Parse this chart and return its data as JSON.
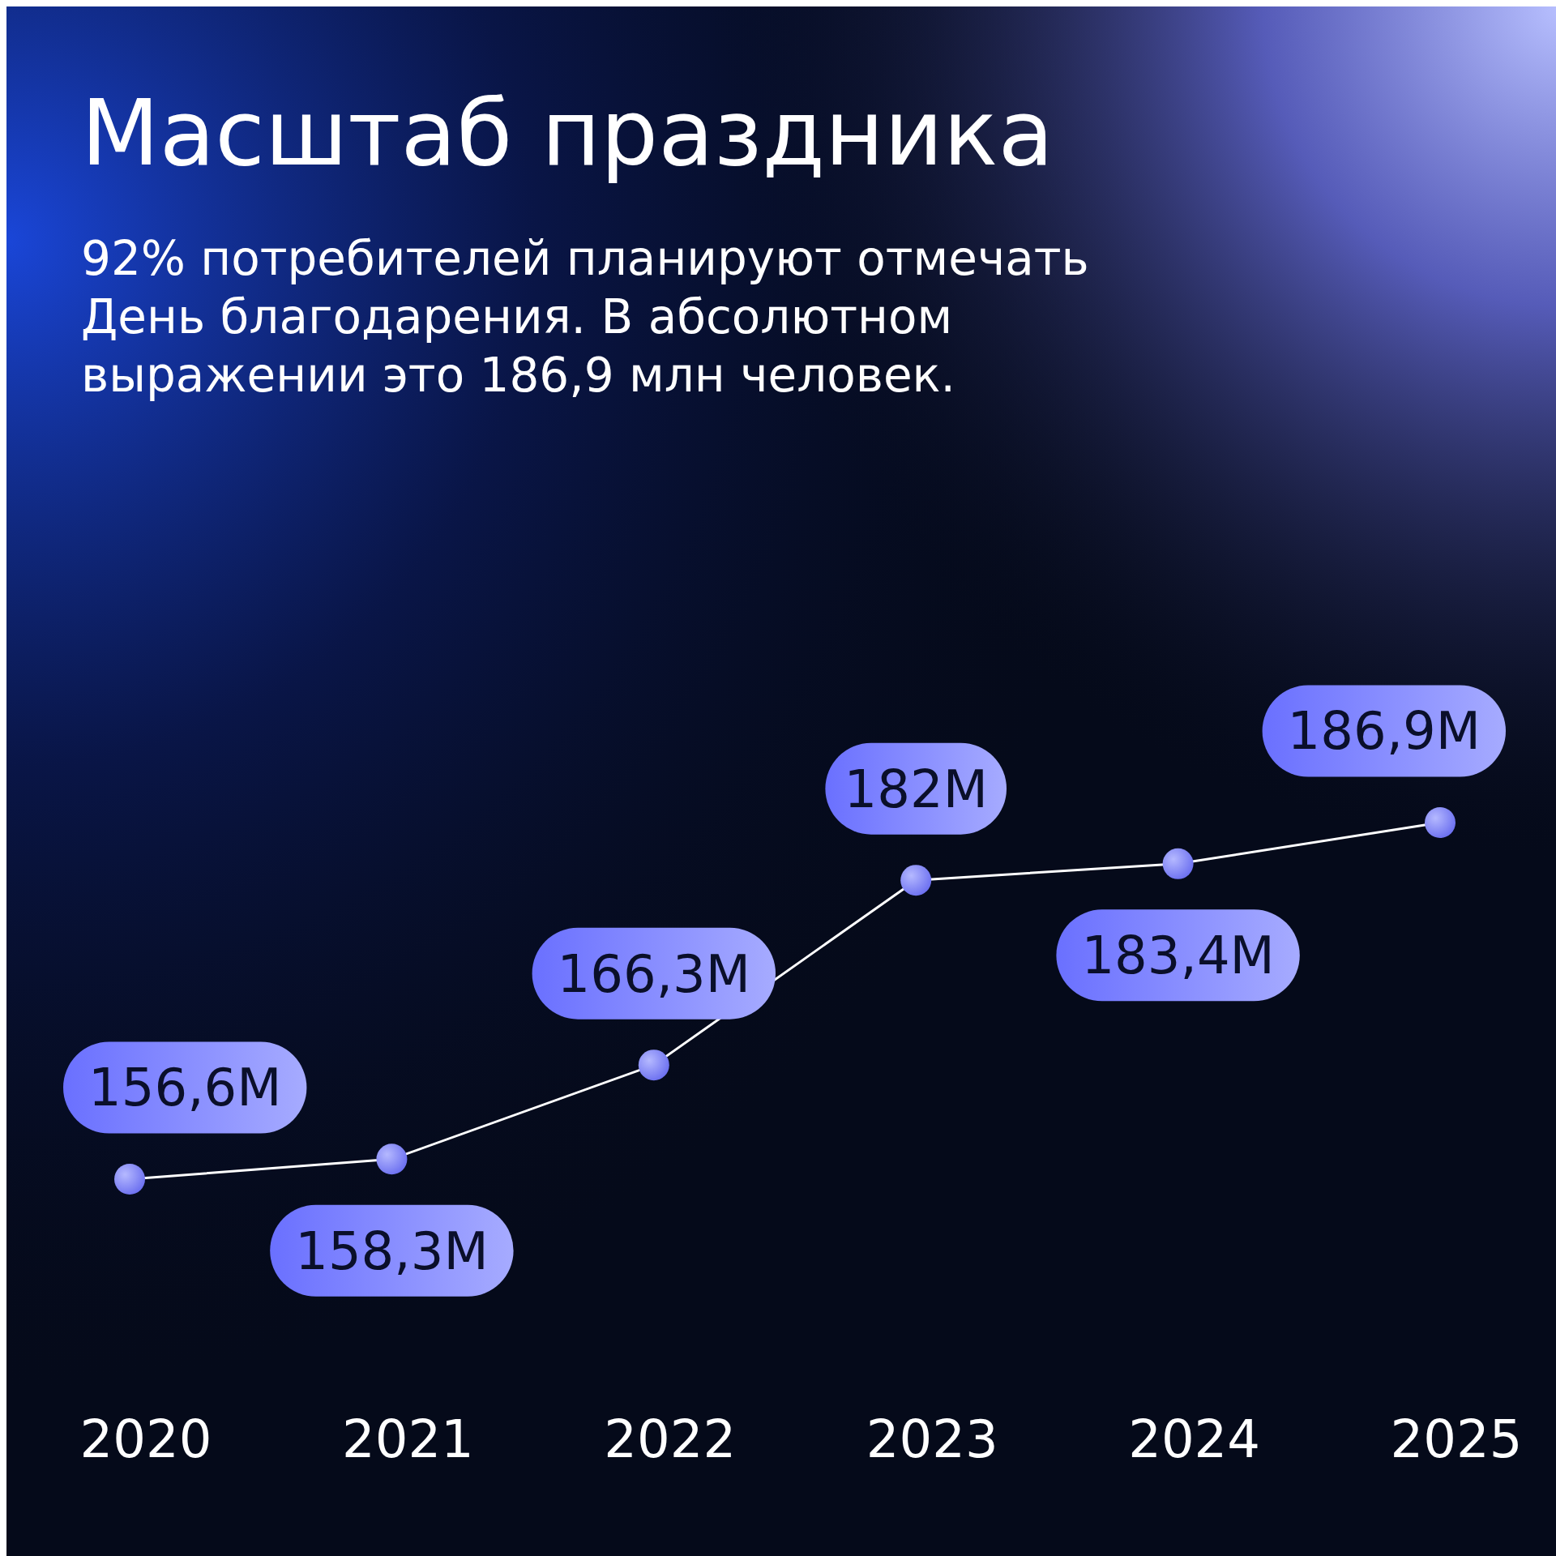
{
  "chart_data": {
    "type": "line",
    "title": "Масштаб праздника",
    "subtitle": "92% потребителей планируют отмечать\nДень благодарения. В абсолютном\nвыражении это 186,9 млн человек.",
    "categories": [
      "2020",
      "2021",
      "2022",
      "2023",
      "2024",
      "2025"
    ],
    "series": [
      {
        "color": "#ffffff",
        "values": [
          156.6,
          158.3,
          166.3,
          182,
          183.4,
          186.9
        ],
        "value_labels": [
          "156,6M",
          "158,3M",
          "166,3M",
          "182M",
          "183,4M",
          "186,9M"
        ]
      }
    ],
    "tick_labels": "x",
    "marker": "circle",
    "line_style": "solid"
  }
}
